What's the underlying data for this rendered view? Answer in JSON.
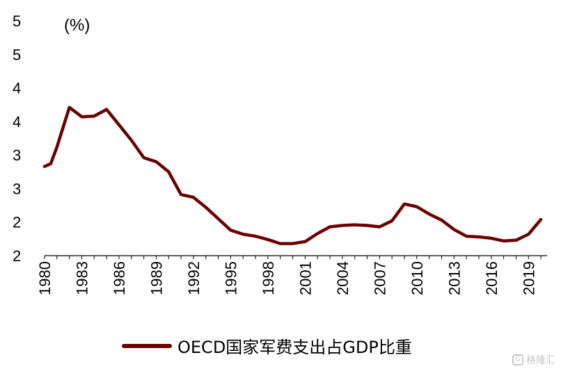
{
  "chart_data": {
    "type": "line",
    "title": "",
    "xlabel": "",
    "ylabel": "(%)",
    "y_tick_labels": [
      "5",
      "5",
      "4",
      "4",
      "3",
      "3",
      "2",
      "2"
    ],
    "ylim": [
      2.0,
      5.5
    ],
    "x_tick_labels": [
      "1980",
      "1983",
      "1986",
      "1989",
      "1992",
      "1995",
      "1998",
      "2001",
      "2004",
      "2007",
      "2010",
      "2013",
      "2016",
      "2019"
    ],
    "xlim": [
      1980,
      2020.5
    ],
    "grid": false,
    "legend_position": "bottom",
    "color": "#6b0000",
    "x": [
      1980,
      1980.5,
      1981,
      1982,
      1983,
      1984,
      1985,
      1986,
      1987,
      1988,
      1989,
      1990,
      1991,
      1992,
      1993,
      1994,
      1995,
      1996,
      1997,
      1998,
      1999,
      2000,
      2001,
      2002,
      2003,
      2004,
      2005,
      2006,
      2007,
      2008,
      2009,
      2010,
      2011,
      2012,
      2013,
      2014,
      2015,
      2016,
      2017,
      2018,
      2019,
      2020
    ],
    "series": [
      {
        "name": "OECD国家军费支出占GDP比重",
        "values": [
          3.33,
          3.37,
          3.62,
          4.21,
          4.07,
          4.08,
          4.18,
          3.95,
          3.72,
          3.46,
          3.4,
          3.25,
          2.91,
          2.87,
          2.72,
          2.55,
          2.38,
          2.32,
          2.29,
          2.24,
          2.18,
          2.18,
          2.21,
          2.33,
          2.43,
          2.45,
          2.46,
          2.45,
          2.43,
          2.52,
          2.77,
          2.73,
          2.62,
          2.53,
          2.39,
          2.29,
          2.28,
          2.26,
          2.22,
          2.23,
          2.32,
          2.54
        ]
      }
    ]
  },
  "legend": {
    "label": "OECD国家军费支出占GDP比重"
  },
  "watermark": {
    "text": "格隆汇"
  }
}
